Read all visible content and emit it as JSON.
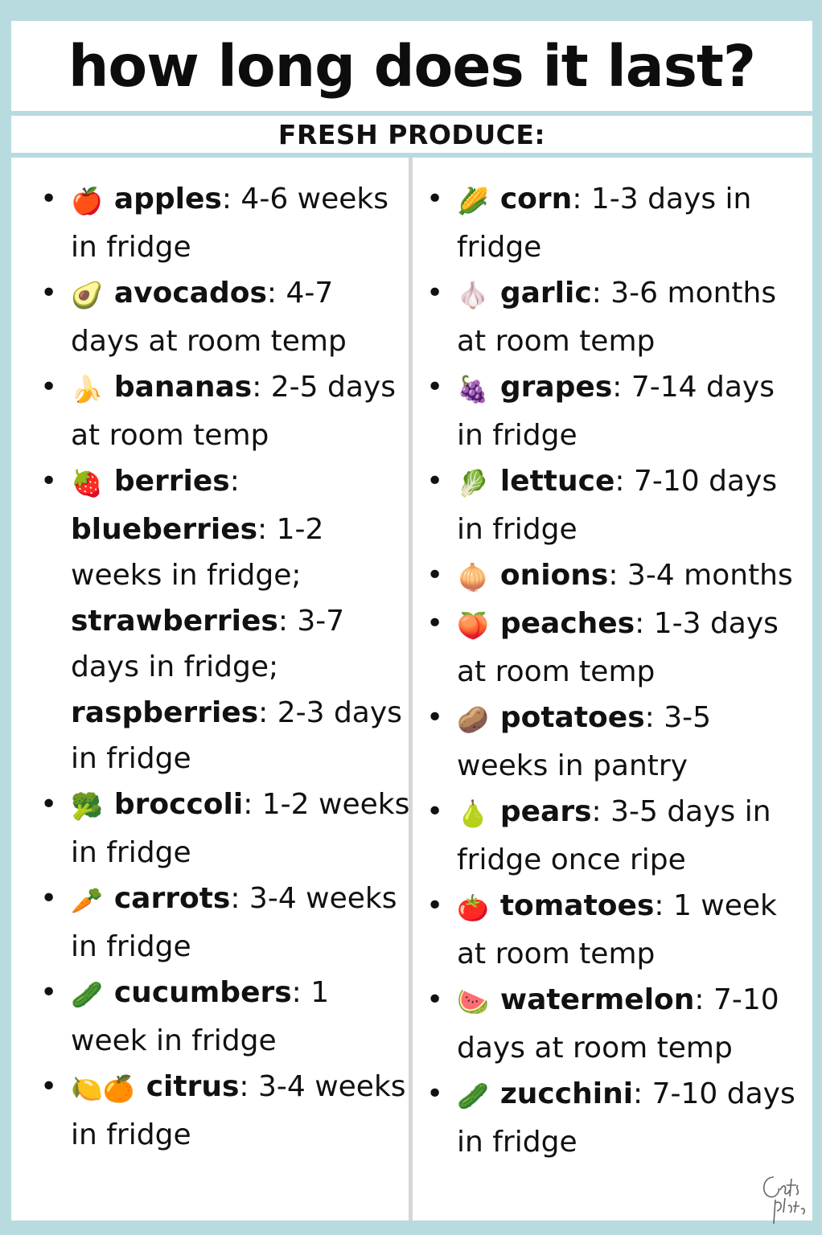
{
  "title": "how long does it last?",
  "subtitle": "FRESH PRODUCE:",
  "left_items": [
    {
      "icon": "🍎",
      "icon_name": "apple-icon",
      "name": "apples",
      "rest": ": 4-6 weeks in fridge"
    },
    {
      "icon": "🥑",
      "icon_name": "avocado-icon",
      "name": "avocados",
      "rest": ": 4-7 days at room temp"
    },
    {
      "icon": "🍌",
      "icon_name": "banana-icon",
      "name": "bananas",
      "rest": ": 2-5 days at room temp"
    },
    {
      "icon": "🍓",
      "icon_name": "strawberry-icon",
      "name": "berries",
      "rest": ":"
    },
    {
      "icon": "🥦",
      "icon_name": "broccoli-icon",
      "name": "broccoli",
      "rest": ": 1-2 weeks in fridge"
    },
    {
      "icon": "🥕",
      "icon_name": "carrot-icon",
      "name": "carrots",
      "rest": ": 3-4 weeks in fridge"
    },
    {
      "icon": "🥒",
      "icon_name": "cucumber-icon",
      "name": "cucumbers",
      "rest": ": 1 week in fridge"
    },
    {
      "icon": "🍋🍊",
      "icon_name": "citrus-icon",
      "name": "citrus",
      "rest": ": 3-4 weeks in fridge"
    }
  ],
  "berries_detail": [
    {
      "name": "blueberries",
      "rest": ": 1-2 weeks in fridge;"
    },
    {
      "name": "strawberries",
      "rest": ": 3-7 days in fridge;"
    },
    {
      "name": "raspberries",
      "rest": ": 2-3 days in fridge"
    }
  ],
  "right_items": [
    {
      "icon": "🌽",
      "icon_name": "corn-icon",
      "name": "corn",
      "rest": ": 1-3 days in fridge"
    },
    {
      "icon": "🧄",
      "icon_name": "garlic-icon",
      "name": "garlic",
      "rest": ": 3-6 months at room temp"
    },
    {
      "icon": "🍇",
      "icon_name": "grapes-icon",
      "name": "grapes",
      "rest": ": 7-14 days in fridge"
    },
    {
      "icon": "🥬",
      "icon_name": "lettuce-icon",
      "name": "lettuce",
      "rest": ": 7-10 days in fridge"
    },
    {
      "icon": "🧅",
      "icon_name": "onion-icon",
      "name": "onions",
      "rest": ": 3-4 months"
    },
    {
      "icon": "🍑",
      "icon_name": "peach-icon",
      "name": "peaches",
      "rest": ": 1-3 days at room temp"
    },
    {
      "icon": "🥔",
      "icon_name": "potato-icon",
      "name": "potatoes",
      "rest": ": 3-5 weeks in pantry"
    },
    {
      "icon": "🍐",
      "icon_name": "pear-icon",
      "name": "pears",
      "rest": ": 3-5 days in fridge once ripe"
    },
    {
      "icon": "🍅",
      "icon_name": "tomato-icon",
      "name": "tomatoes",
      "rest": ": 1 week at room temp"
    },
    {
      "icon": "🍉",
      "icon_name": "watermelon-icon",
      "name": "watermelon",
      "rest": ": 7-10 days at room temp"
    },
    {
      "icon": "🥒",
      "icon_name": "zucchini-icon",
      "name": "zucchini",
      "rest": ": 7-10 days in fridge"
    }
  ],
  "signature_text": "Cait's plate",
  "colors": {
    "background": "#b8dbe0",
    "panel": "#ffffff",
    "divider": "#d6d6d6",
    "text": "#111111"
  }
}
